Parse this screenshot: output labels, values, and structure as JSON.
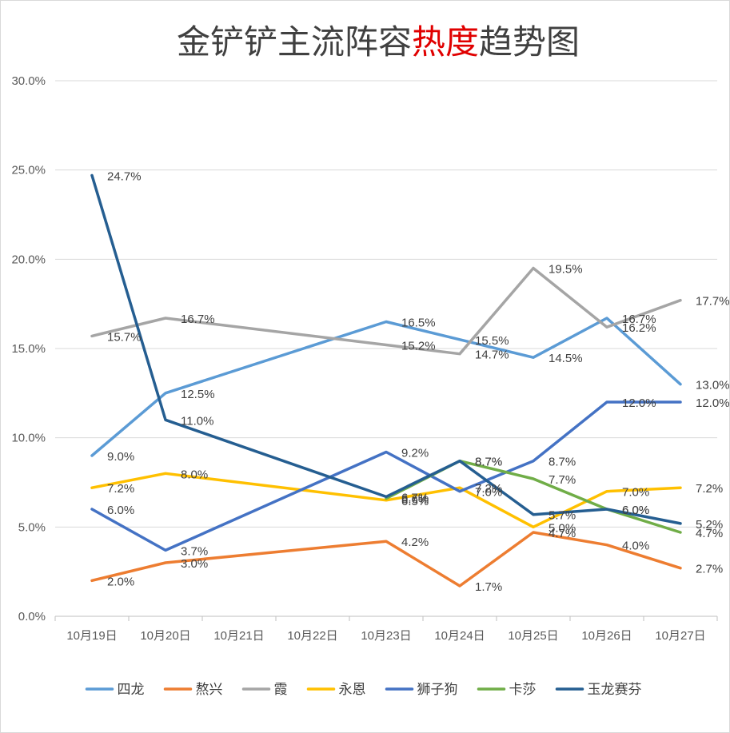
{
  "chart_data": {
    "type": "line",
    "title_parts": [
      {
        "text": "金铲铲主流阵容",
        "color": "#404040"
      },
      {
        "text": "热度",
        "color": "#e00000"
      },
      {
        "text": "趋势图",
        "color": "#404040"
      }
    ],
    "categories": [
      "10月19日",
      "10月20日",
      "10月21日",
      "10月22日",
      "10月23日",
      "10月24日",
      "10月25日",
      "10月26日",
      "10月27日"
    ],
    "ylim": [
      0,
      30
    ],
    "yticks": [
      0,
      5,
      10,
      15,
      20,
      25,
      30
    ],
    "ytick_labels": [
      "0.0%",
      "5.0%",
      "10.0%",
      "15.0%",
      "20.0%",
      "25.0%",
      "30.0%"
    ],
    "grid": true,
    "legend": "bottom",
    "series": [
      {
        "name": "四龙",
        "color": "#5b9bd5",
        "points": [
          [
            0,
            9.0
          ],
          [
            1,
            12.5
          ],
          [
            4,
            16.5
          ],
          [
            5,
            15.5
          ],
          [
            6,
            14.5
          ],
          [
            7,
            16.7
          ],
          [
            8,
            13.0
          ]
        ],
        "labels": [
          "9.0%",
          "12.5%",
          "16.5%",
          "15.5%",
          "14.5%",
          "16.7%",
          "13.0%"
        ]
      },
      {
        "name": "熬兴",
        "color": "#ed7d31",
        "points": [
          [
            0,
            2.0
          ],
          [
            1,
            3.0
          ],
          [
            4,
            4.2
          ],
          [
            5,
            1.7
          ],
          [
            6,
            4.7
          ],
          [
            7,
            4.0
          ],
          [
            8,
            2.7
          ]
        ],
        "labels": [
          "2.0%",
          "3.0%",
          "4.2%",
          "1.7%",
          "4.7%",
          "4.0%",
          "2.7%"
        ]
      },
      {
        "name": "霞",
        "color": "#a5a5a5",
        "points": [
          [
            0,
            15.7
          ],
          [
            1,
            16.7
          ],
          [
            4,
            15.2
          ],
          [
            5,
            14.7
          ],
          [
            6,
            19.5
          ],
          [
            7,
            16.2
          ],
          [
            8,
            17.7
          ]
        ],
        "labels": [
          "15.7%",
          "16.7%",
          "15.2%",
          "14.7%",
          "19.5%",
          "16.2%",
          "17.7%"
        ]
      },
      {
        "name": "永恩",
        "color": "#ffc000",
        "points": [
          [
            0,
            7.2
          ],
          [
            1,
            8.0
          ],
          [
            4,
            6.5
          ],
          [
            5,
            7.2
          ],
          [
            6,
            5.0
          ],
          [
            7,
            7.0
          ],
          [
            8,
            7.2
          ]
        ],
        "labels": [
          "7.2%",
          "8.0%",
          "6.5%",
          "7.2%",
          "5.0%",
          "7.0%",
          "7.2%"
        ]
      },
      {
        "name": "狮子狗",
        "color": "#4472c4",
        "points": [
          [
            0,
            6.0
          ],
          [
            1,
            3.7
          ],
          [
            4,
            9.2
          ],
          [
            5,
            7.0
          ],
          [
            6,
            8.7
          ],
          [
            7,
            12.0
          ],
          [
            8,
            12.0
          ]
        ],
        "labels": [
          "6.0%",
          "3.7%",
          "9.2%",
          "7.0%",
          "8.7%",
          "12.0%",
          "12.0%"
        ]
      },
      {
        "name": "卡莎",
        "color": "#70ad47",
        "points": [
          [
            4,
            6.6
          ],
          [
            5,
            8.7
          ],
          [
            6,
            7.7
          ],
          [
            7,
            6.0
          ],
          [
            8,
            4.7
          ]
        ],
        "labels": [
          "6.6%",
          "8.7%",
          "7.7%",
          "6.0%",
          "4.7%"
        ]
      },
      {
        "name": "玉龙赛芬",
        "color": "#255e91",
        "points": [
          [
            0,
            24.7
          ],
          [
            1,
            11.0
          ],
          [
            4,
            6.7
          ],
          [
            5,
            8.7
          ],
          [
            6,
            5.7
          ],
          [
            7,
            6.0
          ],
          [
            8,
            5.2
          ]
        ],
        "labels": [
          "24.7%",
          "11.0%",
          "6.7%",
          "8.7%",
          "5.7%",
          "6.0%",
          "5.2%"
        ]
      }
    ]
  }
}
